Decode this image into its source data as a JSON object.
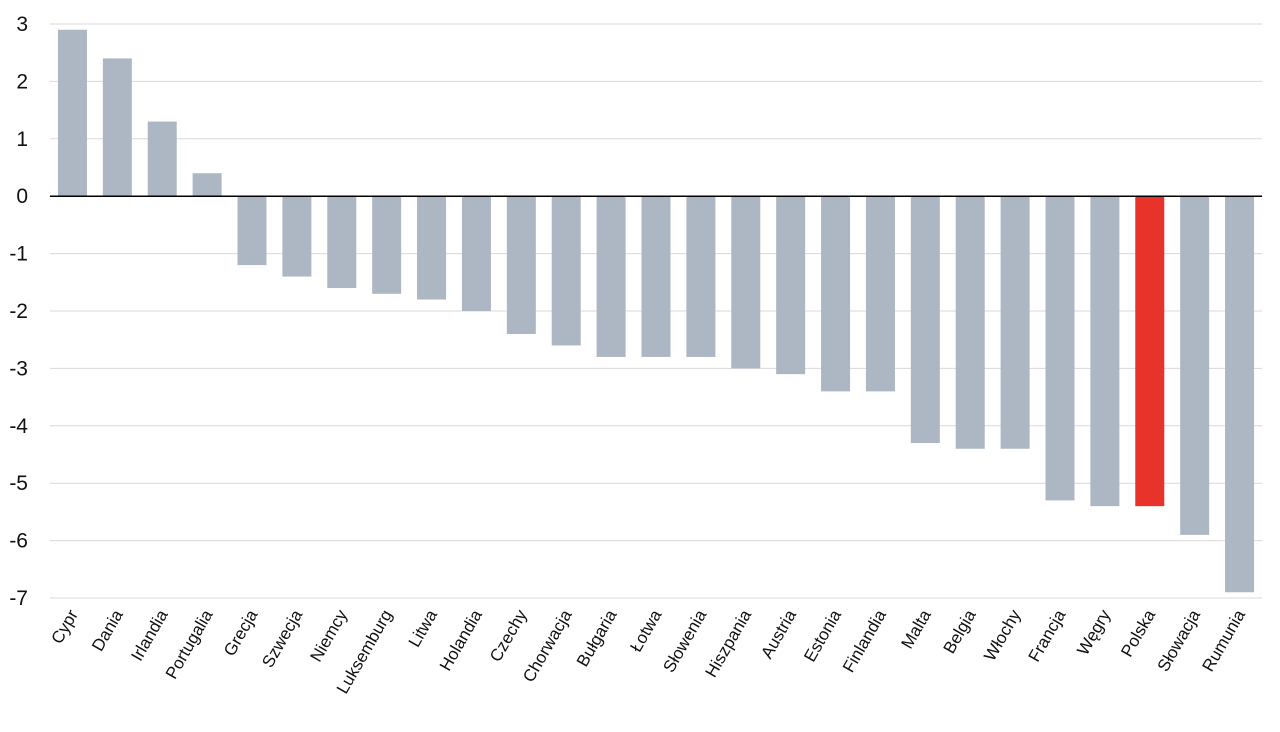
{
  "chart_data": {
    "type": "bar",
    "title": "",
    "xlabel": "",
    "ylabel": "",
    "ylim": [
      -7,
      3
    ],
    "yticks": [
      3,
      2,
      1,
      0,
      -1,
      -2,
      -3,
      -4,
      -5,
      -6,
      -7
    ],
    "grid": true,
    "legend": "none",
    "bar_color": "#adb6c3",
    "highlight_color": "#e8332a",
    "highlight_category": "Polska",
    "categories": [
      "Cypr",
      "Dania",
      "Irlandia",
      "Portugalia",
      "Grecja",
      "Szwecja",
      "Niemcy",
      "Luksemburg",
      "Litwa",
      "Holandia",
      "Czechy",
      "Chorwacja",
      "Bułgaria",
      "Łotwa",
      "Słowenia",
      "Hiszpania",
      "Austria",
      "Estonia",
      "Finlandia",
      "Malta",
      "Belgia",
      "Włochy",
      "Francja",
      "Węgry",
      "Polska",
      "Słowacja",
      "Rumunia"
    ],
    "values": [
      2.9,
      2.4,
      1.3,
      0.4,
      -1.2,
      -1.4,
      -1.6,
      -1.7,
      -1.8,
      -2.0,
      -2.4,
      -2.6,
      -2.8,
      -2.8,
      -2.8,
      -3.0,
      -3.1,
      -3.4,
      -3.4,
      -4.3,
      -4.4,
      -4.4,
      -5.3,
      -5.4,
      -5.4,
      -5.9,
      -6.9
    ]
  }
}
